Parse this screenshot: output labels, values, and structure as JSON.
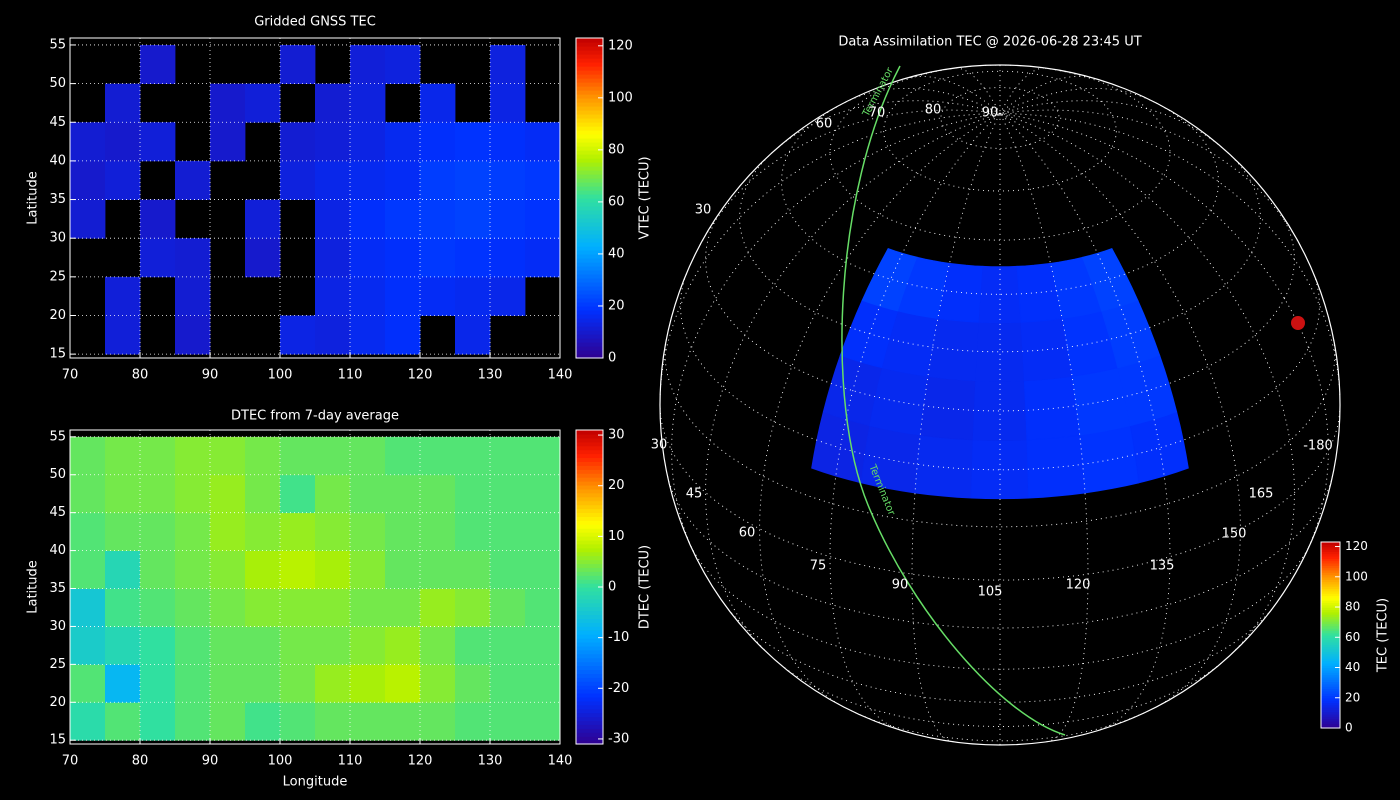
{
  "chart_data": [
    {
      "type": "heatmap",
      "title": "Gridded GNSS TEC",
      "ylabel": "Latitude",
      "colormap": "rainbow",
      "x_edges": [
        70,
        75,
        80,
        85,
        90,
        95,
        100,
        105,
        110,
        115,
        120,
        125,
        130,
        135,
        140
      ],
      "y_edges": [
        15,
        20,
        25,
        30,
        35,
        40,
        45,
        50,
        55
      ],
      "values": [
        [
          null,
          12,
          null,
          10,
          null,
          null,
          14,
          13,
          16,
          18,
          null,
          15,
          null,
          null
        ],
        [
          null,
          12,
          null,
          11,
          null,
          null,
          null,
          14,
          16,
          18,
          17,
          16,
          15,
          null
        ],
        [
          null,
          null,
          12,
          11,
          null,
          10,
          null,
          13,
          17,
          18,
          20,
          19,
          18,
          17
        ],
        [
          11,
          null,
          10,
          null,
          null,
          12,
          null,
          14,
          18,
          20,
          21,
          22,
          20,
          19
        ],
        [
          10,
          12,
          null,
          11,
          null,
          null,
          13,
          15,
          16,
          17,
          21,
          22,
          21,
          20
        ],
        [
          11,
          10,
          12,
          null,
          10,
          null,
          11,
          12,
          14,
          16,
          18,
          19,
          18,
          17
        ],
        [
          null,
          11,
          null,
          null,
          10,
          12,
          null,
          11,
          13,
          null,
          15,
          null,
          14,
          null
        ],
        [
          null,
          null,
          10,
          null,
          null,
          null,
          11,
          null,
          12,
          13,
          null,
          null,
          13,
          null
        ]
      ],
      "xlim": [
        70,
        140
      ],
      "ylim": [
        14.5,
        55.9
      ],
      "xticks": [
        70,
        80,
        90,
        100,
        110,
        120,
        130,
        140
      ],
      "yticks": [
        15,
        20,
        25,
        30,
        35,
        40,
        45,
        50,
        55
      ],
      "grid": true,
      "colorbar": {
        "label": "VTEC (TECU)",
        "lim": [
          0,
          123
        ],
        "ticks": [
          0,
          20,
          40,
          60,
          80,
          100,
          120
        ]
      }
    },
    {
      "type": "heatmap",
      "title": "DTEC from 7-day average",
      "xlabel": "Longitude",
      "ylabel": "Latitude",
      "colormap": "rainbow",
      "x_edges": [
        70,
        75,
        80,
        85,
        90,
        95,
        100,
        105,
        110,
        115,
        120,
        125,
        130,
        135,
        140
      ],
      "y_edges": [
        15,
        20,
        25,
        30,
        35,
        40,
        45,
        50,
        55
      ],
      "values": [
        [
          -1,
          2,
          0,
          2,
          3,
          1,
          2,
          3,
          3,
          3,
          3,
          2,
          2,
          2
        ],
        [
          2,
          -8,
          0,
          2,
          3,
          3,
          4,
          6,
          7,
          8,
          5,
          3,
          2,
          2
        ],
        [
          -4,
          -2,
          0,
          2,
          3,
          3,
          4,
          4,
          5,
          6,
          4,
          2,
          2,
          2
        ],
        [
          -5,
          1,
          2,
          3,
          4,
          5,
          5,
          5,
          4,
          4,
          6,
          5,
          3,
          2
        ],
        [
          2,
          -2,
          3,
          4,
          5,
          7,
          8,
          7,
          5,
          3,
          3,
          3,
          2,
          2
        ],
        [
          2,
          3,
          3,
          4,
          6,
          5,
          6,
          5,
          4,
          3,
          3,
          2,
          2,
          2
        ],
        [
          3,
          4,
          4,
          5,
          6,
          4,
          1,
          4,
          3,
          3,
          3,
          2,
          2,
          2
        ],
        [
          3,
          4,
          4,
          5,
          5,
          4,
          3,
          3,
          3,
          2,
          2,
          2,
          2,
          2
        ]
      ],
      "xlim": [
        70,
        140
      ],
      "ylim": [
        14.5,
        55.9
      ],
      "xticks": [
        70,
        80,
        90,
        100,
        110,
        120,
        130,
        140
      ],
      "yticks": [
        15,
        20,
        25,
        30,
        35,
        40,
        45,
        50,
        55
      ],
      "grid": true,
      "colorbar": {
        "label": "DTEC (TECU)",
        "lim": [
          -31,
          31
        ],
        "ticks": [
          -30,
          -20,
          -10,
          0,
          10,
          20,
          30
        ]
      }
    },
    {
      "type": "globe",
      "title": "Data Assimilation TEC @ 2026-06-28 23:45 UT",
      "projection": "orthographic",
      "colormap": "rainbow",
      "center_lon": 105,
      "center_lat": 31,
      "lon_edges": [
        70,
        80,
        90,
        100,
        110,
        120,
        130,
        140
      ],
      "lat_edges": [
        15,
        25,
        35,
        45,
        55
      ],
      "values": [
        [
          14,
          15,
          16,
          17,
          18,
          19,
          18
        ],
        [
          15,
          16,
          15,
          16,
          18,
          20,
          20
        ],
        [
          18,
          17,
          16,
          16,
          17,
          19,
          21
        ],
        [
          22,
          20,
          18,
          17,
          18,
          20,
          22
        ]
      ],
      "lat_labels": [
        90,
        80,
        70,
        60,
        30
      ],
      "lon_labels": [
        30,
        45,
        60,
        75,
        90,
        105,
        120,
        135,
        150,
        165,
        -180
      ],
      "terminator_label": "Terminator",
      "colorbar": {
        "label": "TEC (TECU)",
        "lim": [
          0,
          123
        ],
        "ticks": [
          0,
          20,
          40,
          60,
          80,
          100,
          120
        ]
      }
    }
  ]
}
